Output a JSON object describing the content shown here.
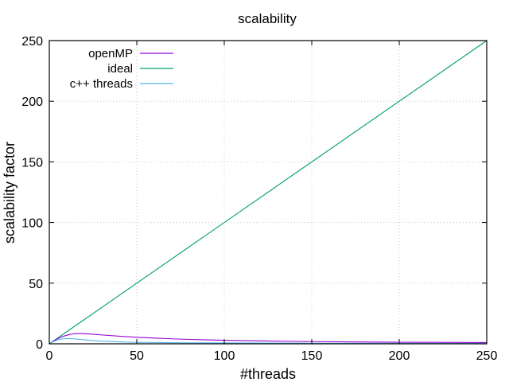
{
  "chart_data": {
    "type": "line",
    "title": "scalability",
    "xlabel": "#threads",
    "ylabel": "scalability factor",
    "xlim": [
      0,
      250
    ],
    "ylim": [
      0,
      250
    ],
    "xticks": [
      0,
      50,
      100,
      150,
      200,
      250
    ],
    "yticks": [
      0,
      50,
      100,
      150,
      200,
      250
    ],
    "grid": true,
    "legend_position": "top-left",
    "series": [
      {
        "name": "openMP",
        "color": "#9400d3",
        "x": [
          1,
          2,
          4,
          6,
          8,
          10,
          12,
          14,
          16,
          18,
          20,
          25,
          30,
          40,
          50,
          60,
          70,
          80,
          100,
          120,
          150,
          170,
          200,
          220,
          250
        ],
        "y": [
          1,
          1.9,
          3.6,
          5.0,
          6.2,
          7.1,
          7.8,
          8.2,
          8.4,
          8.4,
          8.3,
          7.9,
          7.3,
          6.3,
          5.4,
          4.7,
          4.1,
          3.6,
          2.9,
          2.4,
          1.8,
          1.6,
          1.3,
          1.2,
          1.0
        ]
      },
      {
        "name": "ideal",
        "color": "#009e73",
        "x": [
          0,
          250
        ],
        "y": [
          0,
          250
        ]
      },
      {
        "name": "c++ threads",
        "color": "#56b4e9",
        "x": [
          1,
          2,
          4,
          6,
          8,
          10,
          12,
          14,
          16,
          20,
          25,
          30,
          40,
          50,
          60,
          80,
          100,
          150,
          200,
          250
        ],
        "y": [
          0.9,
          1.6,
          2.8,
          3.6,
          4.1,
          4.3,
          4.3,
          4.1,
          3.8,
          3.3,
          2.7,
          2.2,
          1.6,
          1.2,
          1.0,
          0.8,
          0.7,
          0.5,
          0.4,
          0.3
        ]
      }
    ]
  }
}
